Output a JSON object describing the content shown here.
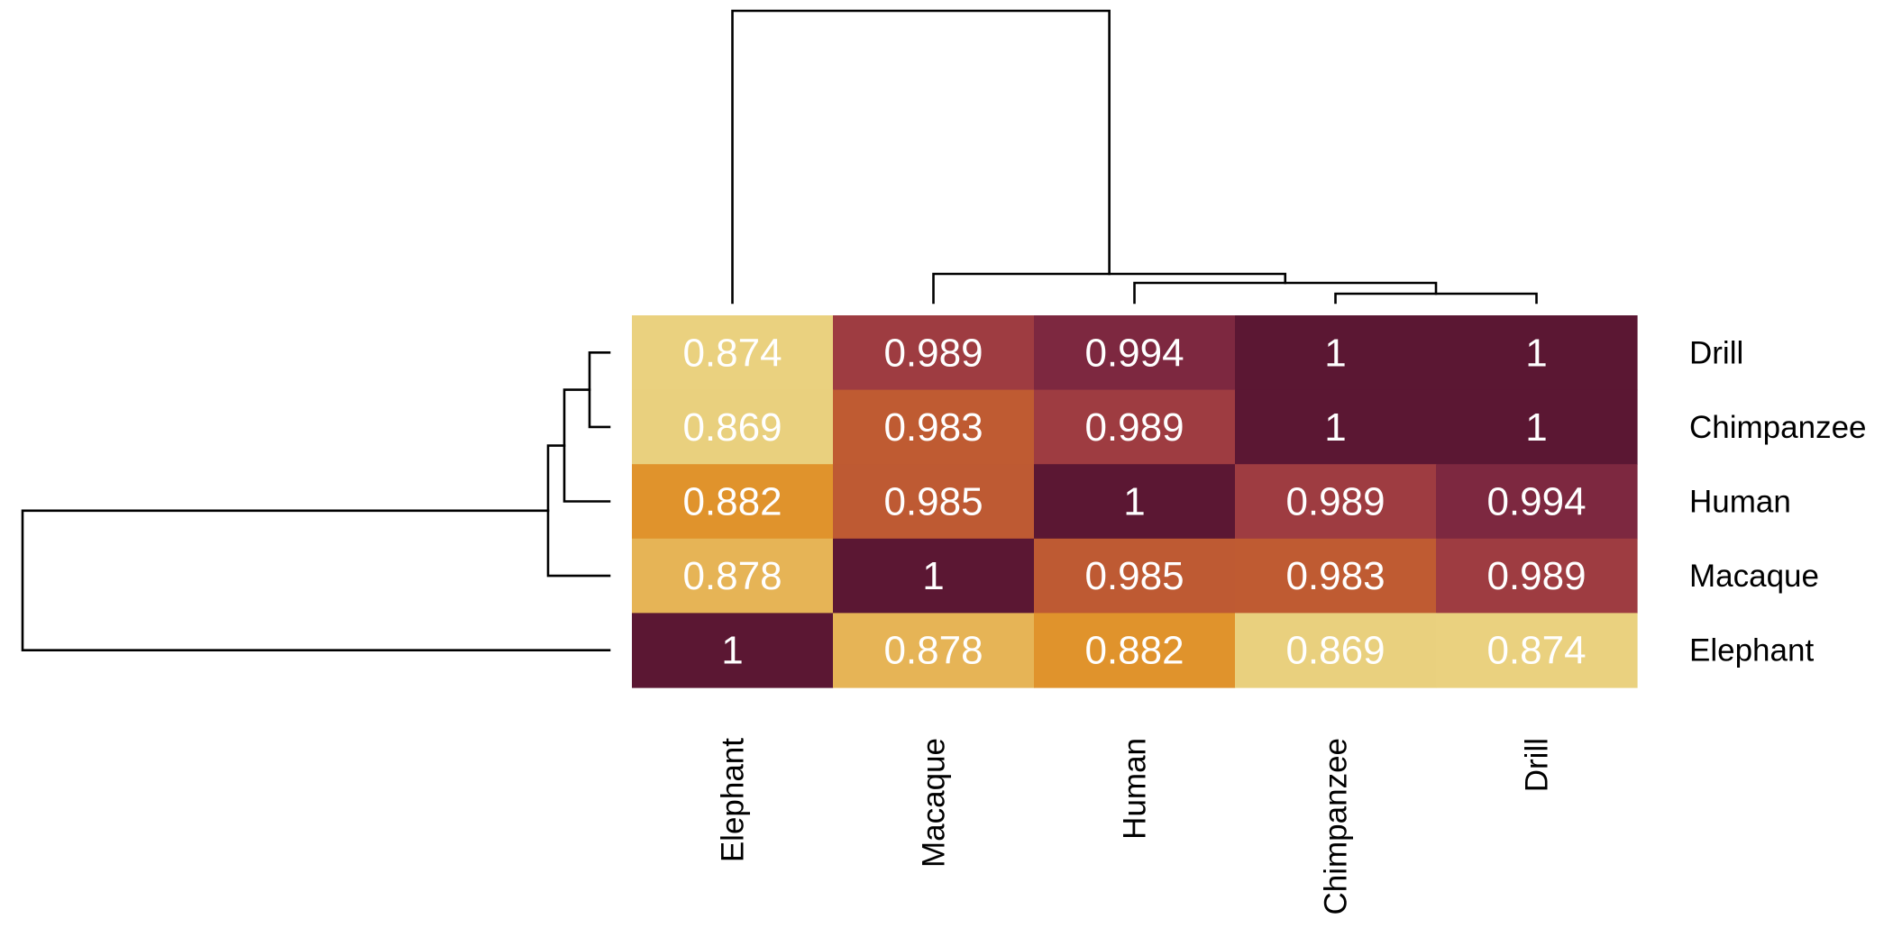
{
  "chart_data": {
    "type": "heatmap",
    "rows": [
      "Drill",
      "Chimpanzee",
      "Human",
      "Macaque",
      "Elephant"
    ],
    "columns": [
      "Elephant",
      "Macaque",
      "Human",
      "Chimpanzee",
      "Drill"
    ],
    "values": [
      [
        0.874,
        0.989,
        0.994,
        1,
        1
      ],
      [
        0.869,
        0.983,
        0.989,
        1,
        1
      ],
      [
        0.882,
        0.985,
        1,
        0.989,
        0.994
      ],
      [
        0.878,
        1,
        0.985,
        0.983,
        0.989
      ],
      [
        1,
        0.878,
        0.882,
        0.869,
        0.874
      ]
    ],
    "cell_labels": [
      [
        "0.874",
        "0.989",
        "0.994",
        "1",
        "1"
      ],
      [
        "0.869",
        "0.983",
        "0.989",
        "1",
        "1"
      ],
      [
        "0.882",
        "0.985",
        "1",
        "0.989",
        "0.994"
      ],
      [
        "0.878",
        "1",
        "0.985",
        "0.983",
        "0.989"
      ],
      [
        "1",
        "0.878",
        "0.882",
        "0.869",
        "0.874"
      ]
    ],
    "color_scale": [
      {
        "value": 0.869,
        "color": "#E9D07E"
      },
      {
        "value": 0.874,
        "color": "#EAD17F"
      },
      {
        "value": 0.878,
        "color": "#E6B456"
      },
      {
        "value": 0.882,
        "color": "#E0932C"
      },
      {
        "value": 0.983,
        "color": "#BF5B32"
      },
      {
        "value": 0.985,
        "color": "#BE5A33"
      },
      {
        "value": 0.989,
        "color": "#9E3C41"
      },
      {
        "value": 0.994,
        "color": "#7D2840"
      },
      {
        "value": 1,
        "color": "#5B1733"
      }
    ],
    "row_dendrogram": true,
    "column_dendrogram": true,
    "legend": "none",
    "grid": false
  }
}
